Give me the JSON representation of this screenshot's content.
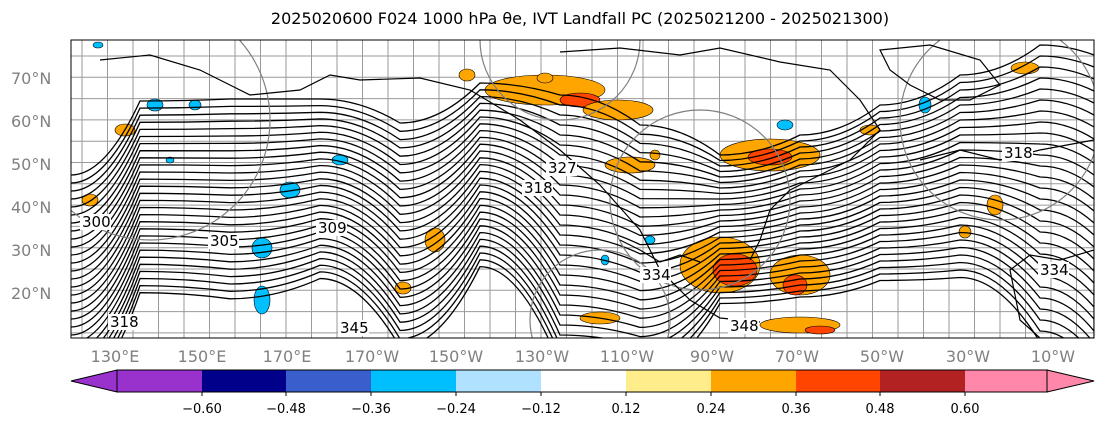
{
  "title": "2025020600 F024 1000 hPa θe, IVT Landfall PC (2025021200 - 2025021300)",
  "map": {
    "lat_labels": [
      "70°N",
      "60°N",
      "50°N",
      "40°N",
      "30°N",
      "20°N"
    ],
    "lon_labels": [
      "130°E",
      "150°E",
      "170°E",
      "170°W",
      "150°W",
      "130°W",
      "110°W",
      "90°W",
      "70°W",
      "50°W",
      "30°W",
      "10°W"
    ],
    "contour_labels": [
      "305",
      "309",
      "318",
      "345",
      "300",
      "348",
      "334",
      "334",
      "318",
      "318",
      "327"
    ],
    "colors": {
      "grid": "#9a9a9a",
      "coast": "#000000",
      "label": "#808080"
    }
  },
  "colorbar": {
    "tick_labels": [
      "−0.60",
      "−0.48",
      "−0.36",
      "−0.24",
      "−0.12",
      "0.12",
      "0.24",
      "0.36",
      "0.48",
      "0.60"
    ],
    "colors": [
      "#9932cc",
      "#00008b",
      "#3a5fcd",
      "#00bfff",
      "#b0e2ff",
      "#ffffff",
      "#ffec8b",
      "#ffa500",
      "#ff4500",
      "#b22222",
      "#ff88aa"
    ]
  }
}
